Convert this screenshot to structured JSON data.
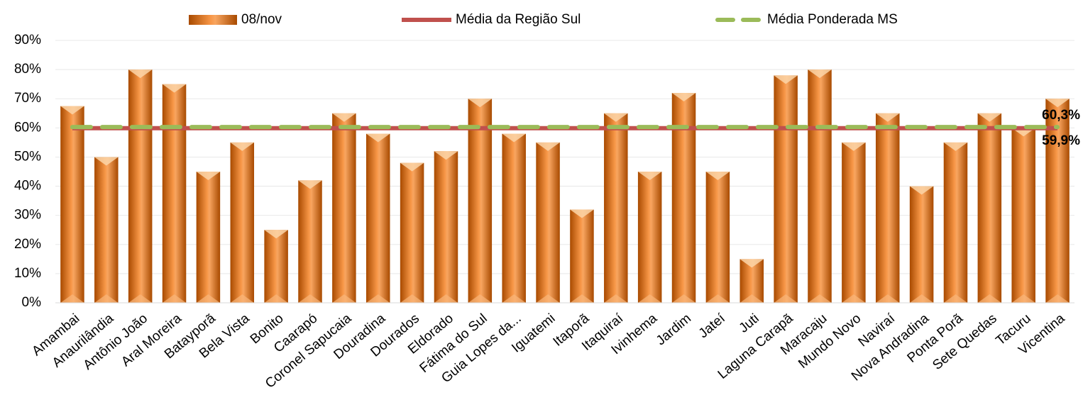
{
  "chart_data": {
    "type": "bar",
    "categories": [
      "Amambai",
      "Anaurilândia",
      "Antônio João",
      "Aral Moreira",
      "Batayporã",
      "Bela Vista",
      "Bonito",
      "Caarapó",
      "Coronel Sapucaia",
      "Douradina",
      "Dourados",
      "Eldorado",
      "Fátima do Sul",
      "Guia Lopes da...",
      "Iguatemi",
      "Itaporã",
      "Itaquiraí",
      "Ivinhema",
      "Jardim",
      "Jateí",
      "Juti",
      "Laguna Carapã",
      "Maracaju",
      "Mundo Novo",
      "Naviraí",
      "Nova Andradina",
      "Ponta Porã",
      "Sete Quedas",
      "Tacuru",
      "Vicentina"
    ],
    "series": [
      {
        "name": "08/nov",
        "color": "#e36c0a",
        "values": [
          67.5,
          50,
          80,
          75,
          45,
          55,
          25,
          42,
          65,
          58,
          48,
          52,
          70,
          58,
          55,
          32,
          65,
          45,
          72,
          45,
          15,
          78,
          80,
          55,
          65,
          40,
          55,
          65,
          60,
          70
        ]
      }
    ],
    "lines": [
      {
        "name": "Média da Região Sul",
        "color": "#c0504d",
        "dashed": false,
        "value": 59.9,
        "value_label": "59,9%"
      },
      {
        "name": "Média Ponderada MS",
        "color": "#9bbb59",
        "dashed": true,
        "value": 60.3,
        "value_label": "60,3%"
      }
    ],
    "ylim": [
      0,
      90
    ],
    "yticks": [
      {
        "value": 0,
        "label": "0%"
      },
      {
        "value": 10,
        "label": "10%"
      },
      {
        "value": 20,
        "label": "20%"
      },
      {
        "value": 30,
        "label": "30%"
      },
      {
        "value": 40,
        "label": "40%"
      },
      {
        "value": 50,
        "label": "50%"
      },
      {
        "value": 60,
        "label": "60%"
      },
      {
        "value": 70,
        "label": "70%"
      },
      {
        "value": 80,
        "label": "80%"
      },
      {
        "value": 90,
        "label": "90%"
      }
    ],
    "grid": true
  }
}
